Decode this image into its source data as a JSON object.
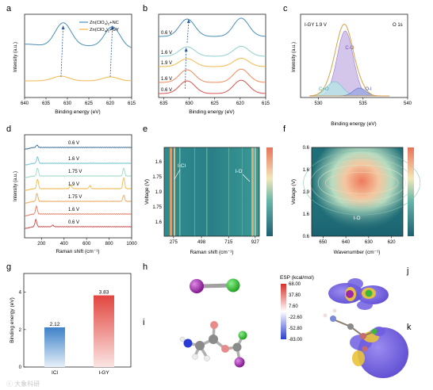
{
  "chart_data": [
    {
      "panel": "a",
      "type": "line",
      "xlabel": "Binding energy (eV)",
      "ylabel": "Intensity (a.u.)",
      "xlim": [
        640,
        615
      ],
      "x_ticks": [
        640,
        635,
        630,
        625,
        620,
        615
      ],
      "series": [
        {
          "name": "Zn(ClO4)2+NC",
          "color": "#4a8fb8",
          "peaks": [
            631.0,
            619.5
          ]
        },
        {
          "name": "Zn(ClO4)2+GY",
          "color": "#f2b84b",
          "peaks": [
            631.5,
            620.0
          ]
        }
      ],
      "annotations": [
        "dashed arrows mark peak shift from GY to NC"
      ]
    },
    {
      "panel": "b",
      "type": "line",
      "xlabel": "Binding energy (eV)",
      "xlim": [
        636,
        615
      ],
      "x_ticks": [
        635,
        630,
        625,
        620,
        615
      ],
      "series": [
        {
          "name": "0.6 V",
          "color": "#4a8fb8"
        },
        {
          "name": "1.6 V",
          "color": "#8fcfd0"
        },
        {
          "name": "1.9 V",
          "color": "#f2b84b"
        },
        {
          "name": "1.6 V",
          "color": "#f08a5d"
        },
        {
          "name": "0.6 V",
          "color": "#d9534f"
        }
      ]
    },
    {
      "panel": "c",
      "type": "line",
      "title": "I-GY 1.9 V",
      "corner_label": "O 1s",
      "xlabel": "Binding energy (eV)",
      "ylabel": "Intensity (a.u.)",
      "x_ticks": [
        530,
        535,
        540
      ],
      "components": [
        {
          "name": "C-O",
          "center": 533.0,
          "color": "#9b7cc4"
        },
        {
          "name": "C=O",
          "center": 531.8,
          "color": "#6fc3cf"
        },
        {
          "name": "O-I",
          "center": 534.6,
          "color": "#5b6fc9"
        }
      ]
    },
    {
      "panel": "d",
      "type": "line",
      "xlabel": "Raman shift (cm⁻¹)",
      "ylabel": "Intensity (a.u.)",
      "x_ticks": [
        200,
        400,
        600,
        800,
        1000
      ],
      "series": [
        {
          "name": "0.6 V",
          "color": "#3a6b94"
        },
        {
          "name": "1.6 V",
          "color": "#6fc3cf"
        },
        {
          "name": "1.75 V",
          "color": "#9fd6c9"
        },
        {
          "name": "1.9 V",
          "color": "#f2b84b"
        },
        {
          "name": "1.75 V",
          "color": "#f2a65a"
        },
        {
          "name": "1.6 V",
          "color": "#e87a5d"
        },
        {
          "name": "0.6 V",
          "color": "#c94a4a"
        }
      ]
    },
    {
      "panel": "e",
      "type": "heatmap",
      "xlabel": "Raman shift (cm⁻¹)",
      "ylabel": "Voltage (V)",
      "x_ticks": [
        275,
        498,
        715,
        927
      ],
      "y_ticks": [
        "1.6",
        "1.75",
        "1.9",
        "1.75",
        "1.6"
      ],
      "annotations": [
        "I-Cl",
        "I-O"
      ]
    },
    {
      "panel": "f",
      "type": "heatmap",
      "xlabel": "Wavenumber (cm⁻¹)",
      "ylabel": "Voltage (V)",
      "x_ticks": [
        650,
        640,
        630,
        620
      ],
      "y_ticks": [
        "0.6",
        "1.6",
        "1.9",
        "1.6",
        "0.6"
      ],
      "annotations": [
        "I-O"
      ]
    },
    {
      "panel": "g",
      "type": "bar",
      "ylabel": "Binding energy (eV)",
      "ylim": [
        0,
        5
      ],
      "y_ticks": [
        0,
        2,
        4
      ],
      "categories": [
        "ICl",
        "I-GY"
      ],
      "values": [
        2.12,
        3.83
      ],
      "colors": [
        "#3e82c9",
        "#e2453f"
      ]
    }
  ],
  "panels": {
    "labels": [
      "a",
      "b",
      "c",
      "d",
      "e",
      "f",
      "g",
      "h",
      "i",
      "j",
      "k"
    ]
  },
  "legend_a": [
    {
      "text": "Zn(ClO",
      "sub": "4",
      "rest": ")",
      "sub2": "2",
      "tail": "+NC"
    },
    {
      "text": "Zn(ClO",
      "sub": "4",
      "rest": ")",
      "sub2": "2",
      "tail": "+GY"
    }
  ],
  "esp": {
    "title": "ESP (kcal/mol)",
    "ticks": [
      "68.00",
      "37.80",
      "7.60",
      "-22.60",
      "-52.80",
      "-83.00"
    ]
  },
  "watermark": "ⓒ 大象科研",
  "colors": {
    "accent_blue": "#3e82c9",
    "accent_red": "#e2453f"
  }
}
